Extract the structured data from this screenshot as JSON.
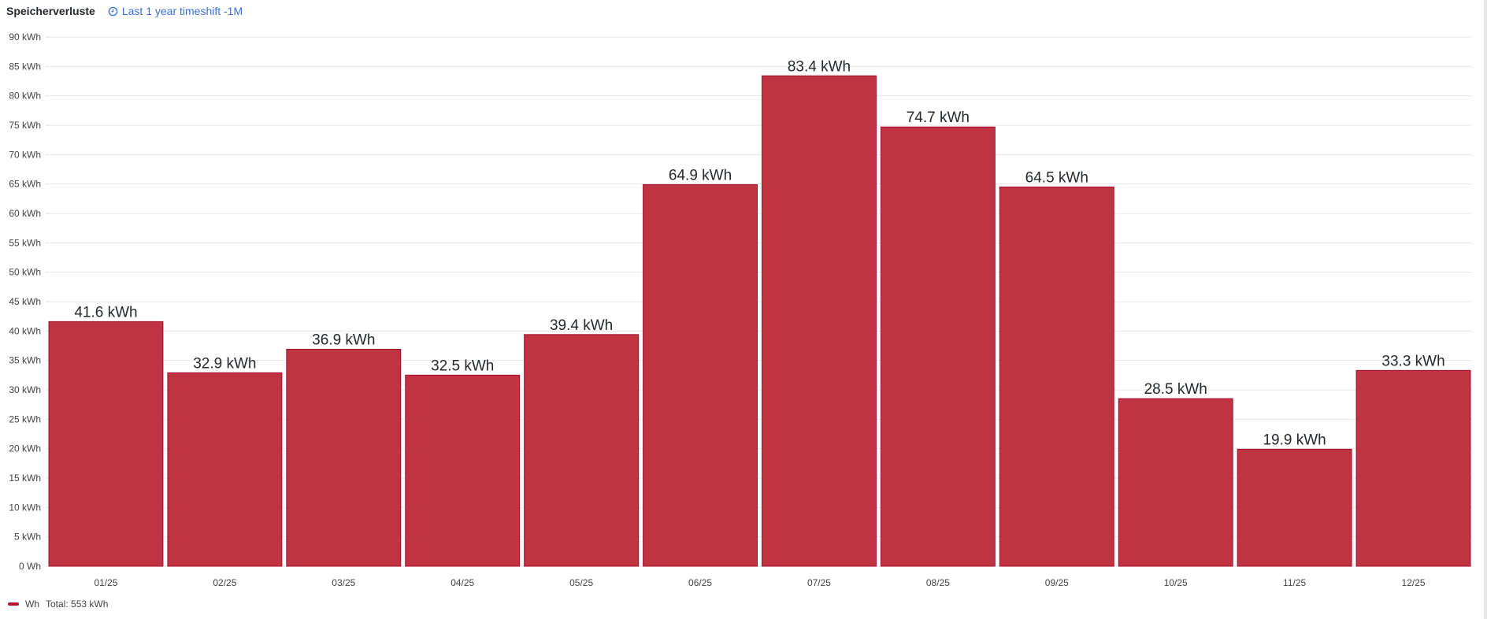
{
  "header": {
    "title": "Speicherverluste",
    "timeshift": "Last 1 year timeshift -1M",
    "timeshift_icon": "clock-icon"
  },
  "colors": {
    "bar": "#bf3343",
    "bar_border": "#a50e2d",
    "grid": "#e6e6e6",
    "accent": "#3871dc"
  },
  "legend": {
    "series": "Wh",
    "total": "Total: 553 kWh"
  },
  "chart_data": {
    "type": "bar",
    "title": "Speicherverluste",
    "categories": [
      "01/25",
      "02/25",
      "03/25",
      "04/25",
      "05/25",
      "06/25",
      "07/25",
      "08/25",
      "09/25",
      "10/25",
      "11/25",
      "12/25"
    ],
    "values": [
      41.6,
      32.9,
      36.9,
      32.5,
      39.4,
      64.9,
      83.4,
      74.7,
      64.5,
      28.5,
      19.9,
      33.3
    ],
    "data_labels": [
      "41.6 kWh",
      "32.9 kWh",
      "36.9 kWh",
      "32.5 kWh",
      "39.4 kWh",
      "64.9 kWh",
      "83.4 kWh",
      "74.7 kWh",
      "64.5 kWh",
      "28.5 kWh",
      "19.9 kWh",
      "33.3 kWh"
    ],
    "unit": "kWh",
    "ylim": [
      0,
      90
    ],
    "yticks": [
      "0 Wh",
      "5 kWh",
      "10 kWh",
      "15 kWh",
      "20 kWh",
      "25 kWh",
      "30 kWh",
      "35 kWh",
      "40 kWh",
      "45 kWh",
      "50 kWh",
      "55 kWh",
      "60 kWh",
      "65 kWh",
      "70 kWh",
      "75 kWh",
      "80 kWh",
      "85 kWh",
      "90 kWh"
    ],
    "grid": true,
    "legend": "bottom-left"
  }
}
